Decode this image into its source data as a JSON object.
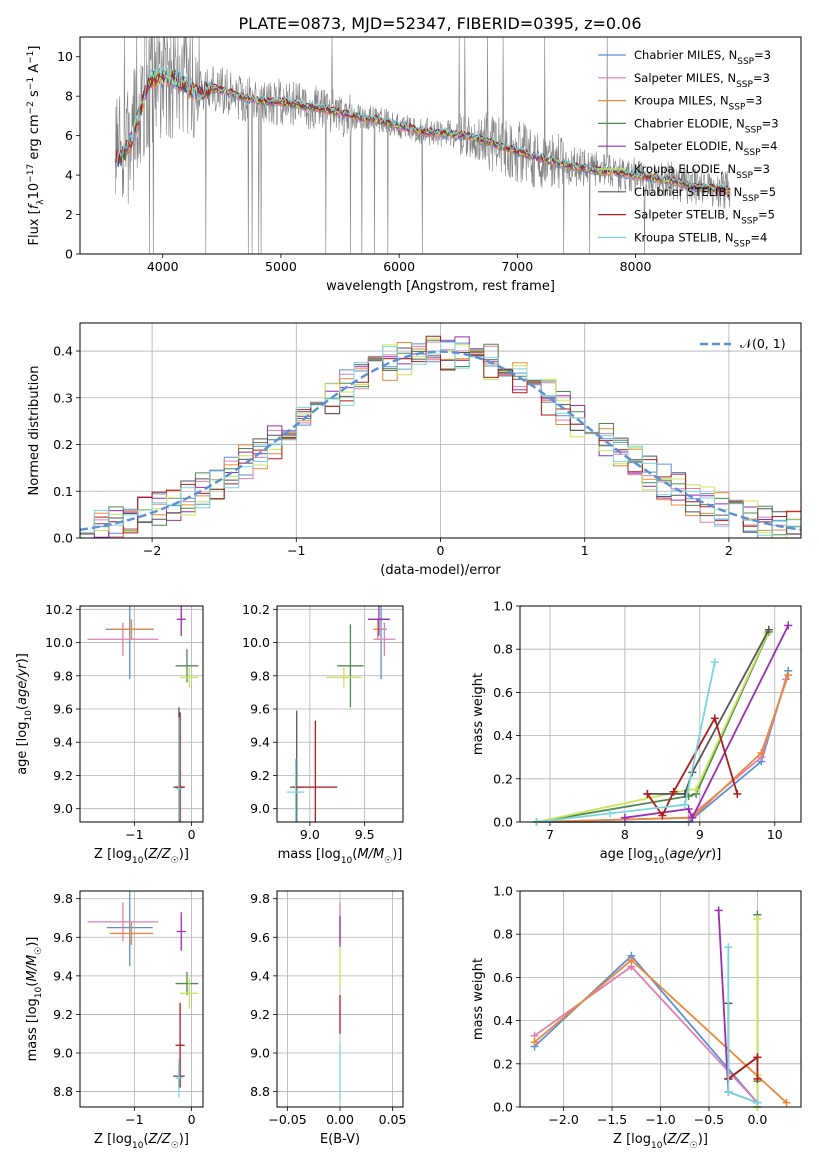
{
  "title": "PLATE=0873, MJD=52347, FIBERID=0395, z=0.06",
  "models": [
    {
      "name": "Chabrier MILES",
      "nssp": "3",
      "color": "#5b8fd6"
    },
    {
      "name": "Salpeter MILES",
      "nssp": "3",
      "color": "#e07fb0"
    },
    {
      "name": "Kroupa MILES",
      "nssp": "3",
      "color": "#e8893c"
    },
    {
      "name": "Chabrier ELODIE",
      "nssp": "3",
      "color": "#4f8a4f"
    },
    {
      "name": "Salpeter ELODIE",
      "nssp": "4",
      "color": "#9a2fb0"
    },
    {
      "name": "Kroupa ELODIE",
      "nssp": "3",
      "color": "#c8e65a"
    },
    {
      "name": "Chabrier STELIB",
      "nssp": "5",
      "color": "#555555"
    },
    {
      "name": "Salpeter STELIB",
      "nssp": "5",
      "color": "#b01c1c"
    },
    {
      "name": "Kroupa STELIB",
      "nssp": "4",
      "color": "#7ad6dc"
    }
  ],
  "chart_data": [
    {
      "id": "spectrum",
      "type": "line",
      "title": "PLATE=0873, MJD=52347, FIBERID=0395, z=0.06",
      "xlabel": "wavelength [Angstrom, rest frame]",
      "ylabel": "Flux [f_λ 10^-17 erg cm^-2 s^-1 A^-1]",
      "xlim": [
        3300,
        9400
      ],
      "ylim": [
        0,
        11
      ],
      "xticks": [
        "4000",
        "5000",
        "6000",
        "7000",
        "8000"
      ],
      "yticks": [
        "0",
        "2",
        "4",
        "6",
        "8",
        "10"
      ],
      "data_color": "#808080",
      "continuum": [
        [
          3600,
          4.7
        ],
        [
          3700,
          5.3
        ],
        [
          3750,
          6.0
        ],
        [
          3800,
          7.0
        ],
        [
          3850,
          8.2
        ],
        [
          3900,
          8.8
        ],
        [
          4000,
          9.0
        ],
        [
          4100,
          8.9
        ],
        [
          4200,
          8.5
        ],
        [
          4300,
          8.1
        ],
        [
          4400,
          8.4
        ],
        [
          4500,
          8.3
        ],
        [
          4600,
          8.1
        ],
        [
          4700,
          7.9
        ],
        [
          4800,
          7.8
        ],
        [
          4900,
          7.7
        ],
        [
          5000,
          7.7
        ],
        [
          5200,
          7.5
        ],
        [
          5400,
          7.3
        ],
        [
          5600,
          7.0
        ],
        [
          5800,
          6.8
        ],
        [
          6000,
          6.5
        ],
        [
          6200,
          6.2
        ],
        [
          6400,
          6.1
        ],
        [
          6563,
          6.0
        ],
        [
          6700,
          5.8
        ],
        [
          6900,
          5.4
        ],
        [
          7100,
          5.0
        ],
        [
          7300,
          4.7
        ],
        [
          7500,
          4.4
        ],
        [
          7700,
          4.2
        ],
        [
          7900,
          4.1
        ],
        [
          8100,
          3.9
        ],
        [
          8300,
          3.7
        ],
        [
          8500,
          3.4
        ],
        [
          8700,
          3.3
        ],
        [
          8800,
          3.2
        ]
      ],
      "legend_position": "upper right"
    },
    {
      "id": "residuals",
      "type": "histogram",
      "xlabel": "(data-model)/error",
      "ylabel": "Normed distribution",
      "xlim": [
        -2.5,
        2.5
      ],
      "ylim": [
        0,
        0.46
      ],
      "xticks": [
        "−2",
        "−1",
        "0",
        "1",
        "2"
      ],
      "yticks": [
        "0.0",
        "0.1",
        "0.2",
        "0.3",
        "0.4"
      ],
      "bin_width": 0.1,
      "reference_curve": "𝒩(0, 1)",
      "reference_color": "#5b8fd6",
      "legend_position": "upper right"
    },
    {
      "id": "age_vs_Z",
      "type": "scatter",
      "xlabel": "Z [log10(Z/Z☉)]",
      "ylabel": "age [log10(age/yr)]",
      "xlim": [
        -1.95,
        0.2
      ],
      "ylim": [
        8.92,
        10.22
      ],
      "xticks": [
        "−1",
        "0"
      ],
      "yticks": [
        "9.0",
        "9.2",
        "9.4",
        "9.6",
        "9.8",
        "10.0",
        "10.2"
      ],
      "points": [
        {
          "model": 0,
          "x": -1.08,
          "y": 10.08,
          "xerr": 0.42,
          "yerr": 0.3
        },
        {
          "model": 1,
          "x": -1.2,
          "y": 10.02,
          "xerr": 0.62,
          "yerr": 0.1
        },
        {
          "model": 2,
          "x": -1.05,
          "y": 10.08,
          "xerr": 0.38,
          "yerr": 0.06
        },
        {
          "model": 3,
          "x": -0.08,
          "y": 9.86,
          "xerr": 0.2,
          "yerr": 0.1
        },
        {
          "model": 4,
          "x": -0.18,
          "y": 10.14,
          "xerr": 0.08,
          "yerr": 0.1
        },
        {
          "model": 5,
          "x": -0.04,
          "y": 9.79,
          "xerr": 0.16,
          "yerr": 0.06
        },
        {
          "model": 6,
          "x": -0.22,
          "y": 9.13,
          "xerr": 0.1,
          "yerr": 0.48
        },
        {
          "model": 7,
          "x": -0.2,
          "y": 9.13,
          "xerr": 0.08,
          "yerr": 0.45
        },
        {
          "model": 8,
          "x": -0.22,
          "y": 9.12,
          "xerr": 0.06,
          "yerr": 0.43
        }
      ]
    },
    {
      "id": "age_vs_mass",
      "type": "scatter",
      "xlabel": "mass [log10(M/M☉)]",
      "ylabel": "",
      "xlim": [
        8.7,
        9.85
      ],
      "ylim": [
        8.92,
        10.22
      ],
      "xticks": [
        "9.0",
        "9.5"
      ],
      "yticks": [
        "9.0",
        "9.2",
        "9.4",
        "9.6",
        "9.8",
        "10.0",
        "10.2"
      ],
      "points": [
        {
          "model": 0,
          "x": 9.65,
          "y": 10.08,
          "xerr": 0.05,
          "yerr": 0.3
        },
        {
          "model": 1,
          "x": 9.68,
          "y": 10.02,
          "xerr": 0.1,
          "yerr": 0.1
        },
        {
          "model": 2,
          "x": 9.62,
          "y": 10.08,
          "xerr": 0.04,
          "yerr": 0.06
        },
        {
          "model": 3,
          "x": 9.37,
          "y": 9.86,
          "xerr": 0.12,
          "yerr": 0.25
        },
        {
          "model": 4,
          "x": 9.63,
          "y": 10.14,
          "xerr": 0.1,
          "yerr": 0.1
        },
        {
          "model": 5,
          "x": 9.31,
          "y": 9.79,
          "xerr": 0.16,
          "yerr": 0.06
        },
        {
          "model": 6,
          "x": 8.88,
          "y": 9.13,
          "xerr": 0.06,
          "yerr": 0.46
        },
        {
          "model": 7,
          "x": 9.05,
          "y": 9.13,
          "xerr": 0.2,
          "yerr": 0.4
        },
        {
          "model": 8,
          "x": 8.87,
          "y": 9.1,
          "xerr": 0.08,
          "yerr": 0.2
        }
      ]
    },
    {
      "id": "massweight_vs_age",
      "type": "line",
      "xlabel": "age [log10(age/yr)]",
      "ylabel": "mass weight",
      "xlim": [
        6.6,
        10.35
      ],
      "ylim": [
        0,
        1
      ],
      "xticks": [
        "7",
        "8",
        "9",
        "10"
      ],
      "yticks": [
        "0.0",
        "0.2",
        "0.4",
        "0.6",
        "0.8",
        "1.0"
      ],
      "series": [
        {
          "model": 0,
          "x": [
            6.82,
            8.85,
            9.82,
            10.18
          ],
          "y": [
            0.0,
            0.0,
            0.28,
            0.7
          ]
        },
        {
          "model": 1,
          "x": [
            6.82,
            8.85,
            9.82,
            10.15
          ],
          "y": [
            0.0,
            0.02,
            0.3,
            0.66
          ]
        },
        {
          "model": 2,
          "x": [
            6.82,
            8.9,
            9.82,
            10.18
          ],
          "y": [
            0.0,
            0.02,
            0.32,
            0.68
          ]
        },
        {
          "model": 3,
          "x": [
            6.82,
            8.85,
            8.95,
            9.92
          ],
          "y": [
            0.0,
            0.12,
            0.13,
            0.88
          ]
        },
        {
          "model": 4,
          "x": [
            8.0,
            8.85,
            8.9,
            10.18
          ],
          "y": [
            0.02,
            0.06,
            0.02,
            0.91
          ]
        },
        {
          "model": 5,
          "x": [
            6.82,
            8.85,
            8.95,
            9.9
          ],
          "y": [
            0.0,
            0.15,
            0.15,
            0.87
          ]
        },
        {
          "model": 6,
          "x": [
            8.3,
            8.8,
            8.9,
            9.92
          ],
          "y": [
            0.13,
            0.13,
            0.23,
            0.89
          ]
        },
        {
          "model": 7,
          "x": [
            8.3,
            8.5,
            8.65,
            9.2,
            9.5
          ],
          "y": [
            0.13,
            0.03,
            0.14,
            0.48,
            0.13
          ]
        },
        {
          "model": 8,
          "x": [
            6.82,
            7.8,
            8.8,
            9.2
          ],
          "y": [
            0.0,
            0.04,
            0.08,
            0.74
          ]
        }
      ]
    },
    {
      "id": "mass_vs_Z",
      "type": "scatter",
      "xlabel": "Z [log10(Z/Z☉)]",
      "ylabel": "mass [log10(M/M☉)]",
      "xlim": [
        -1.95,
        0.2
      ],
      "ylim": [
        8.72,
        9.84
      ],
      "xticks": [
        "−1",
        "0"
      ],
      "yticks": [
        "8.8",
        "9.0",
        "9.2",
        "9.4",
        "9.6",
        "9.8"
      ],
      "points": [
        {
          "model": 0,
          "x": -1.08,
          "y": 9.65,
          "xerr": 0.4,
          "yerr": 0.2
        },
        {
          "model": 1,
          "x": -1.2,
          "y": 9.68,
          "xerr": 0.62,
          "yerr": 0.1
        },
        {
          "model": 2,
          "x": -1.05,
          "y": 9.62,
          "xerr": 0.38,
          "yerr": 0.06
        },
        {
          "model": 3,
          "x": -0.08,
          "y": 9.36,
          "xerr": 0.2,
          "yerr": 0.06
        },
        {
          "model": 4,
          "x": -0.18,
          "y": 9.63,
          "xerr": 0.08,
          "yerr": 0.1
        },
        {
          "model": 5,
          "x": -0.04,
          "y": 9.31,
          "xerr": 0.16,
          "yerr": 0.08
        },
        {
          "model": 6,
          "x": -0.22,
          "y": 8.88,
          "xerr": 0.1,
          "yerr": 0.06
        },
        {
          "model": 7,
          "x": -0.2,
          "y": 9.04,
          "xerr": 0.08,
          "yerr": 0.22
        },
        {
          "model": 8,
          "x": -0.22,
          "y": 8.87,
          "xerr": 0.06,
          "yerr": 0.1
        }
      ]
    },
    {
      "id": "mass_vs_ebv",
      "type": "scatter",
      "xlabel": "E(B-V)",
      "ylabel": "",
      "xlim": [
        -0.06,
        0.06
      ],
      "ylim": [
        8.72,
        9.84
      ],
      "xticks": [
        "−0.05",
        "0.00",
        "0.05"
      ],
      "yticks": [
        "8.8",
        "9.0",
        "9.2",
        "9.4",
        "9.6",
        "9.8"
      ],
      "points": [
        {
          "model": 1,
          "x": 0.0,
          "y": 9.68,
          "xerr": 0,
          "yerr": 0.1
        },
        {
          "model": 4,
          "x": 0.0,
          "y": 9.63,
          "xerr": 0,
          "yerr": 0.08
        },
        {
          "model": 5,
          "x": 0.0,
          "y": 9.45,
          "xerr": 0,
          "yerr": 0.1
        },
        {
          "model": 7,
          "x": 0.0,
          "y": 9.2,
          "xerr": 0,
          "yerr": 0.1
        },
        {
          "model": 8,
          "x": 0.0,
          "y": 8.9,
          "xerr": 0,
          "yerr": 0.15
        }
      ]
    },
    {
      "id": "massweight_vs_Z",
      "type": "line",
      "xlabel": "Z [log10(Z/Z☉)]",
      "ylabel": "mass weight",
      "xlim": [
        -2.45,
        0.45
      ],
      "ylim": [
        0,
        1
      ],
      "xticks": [
        "−2.0",
        "−1.5",
        "−1.0",
        "−0.5",
        "0.0"
      ],
      "yticks": [
        "0.0",
        "0.2",
        "0.4",
        "0.6",
        "0.8",
        "1.0"
      ],
      "series": [
        {
          "model": 0,
          "x": [
            -2.3,
            -1.3,
            0.0
          ],
          "y": [
            0.28,
            0.7,
            0.02
          ]
        },
        {
          "model": 1,
          "x": [
            -2.3,
            -1.3,
            0.0
          ],
          "y": [
            0.33,
            0.65,
            0.02
          ]
        },
        {
          "model": 2,
          "x": [
            -2.3,
            -1.3,
            0.3
          ],
          "y": [
            0.3,
            0.68,
            0.02
          ]
        },
        {
          "model": 3,
          "x": [
            0.0,
            0.0,
            0.0
          ],
          "y": [
            0.89,
            0.12,
            0.0
          ]
        },
        {
          "model": 4,
          "x": [
            -0.4,
            -0.3,
            0.0
          ],
          "y": [
            0.91,
            0.07,
            0.02
          ]
        },
        {
          "model": 5,
          "x": [
            0.0,
            0.0,
            0.0
          ],
          "y": [
            0.87,
            0.15,
            0.0
          ]
        },
        {
          "model": 6,
          "x": [
            -0.3,
            -0.3,
            0.0
          ],
          "y": [
            0.48,
            0.13,
            0.23
          ]
        },
        {
          "model": 7,
          "x": [
            -0.3,
            0.0,
            0.0
          ],
          "y": [
            0.13,
            0.23,
            0.13
          ]
        },
        {
          "model": 8,
          "x": [
            -0.3,
            -0.3,
            0.0
          ],
          "y": [
            0.74,
            0.07,
            0.02
          ]
        }
      ]
    }
  ]
}
